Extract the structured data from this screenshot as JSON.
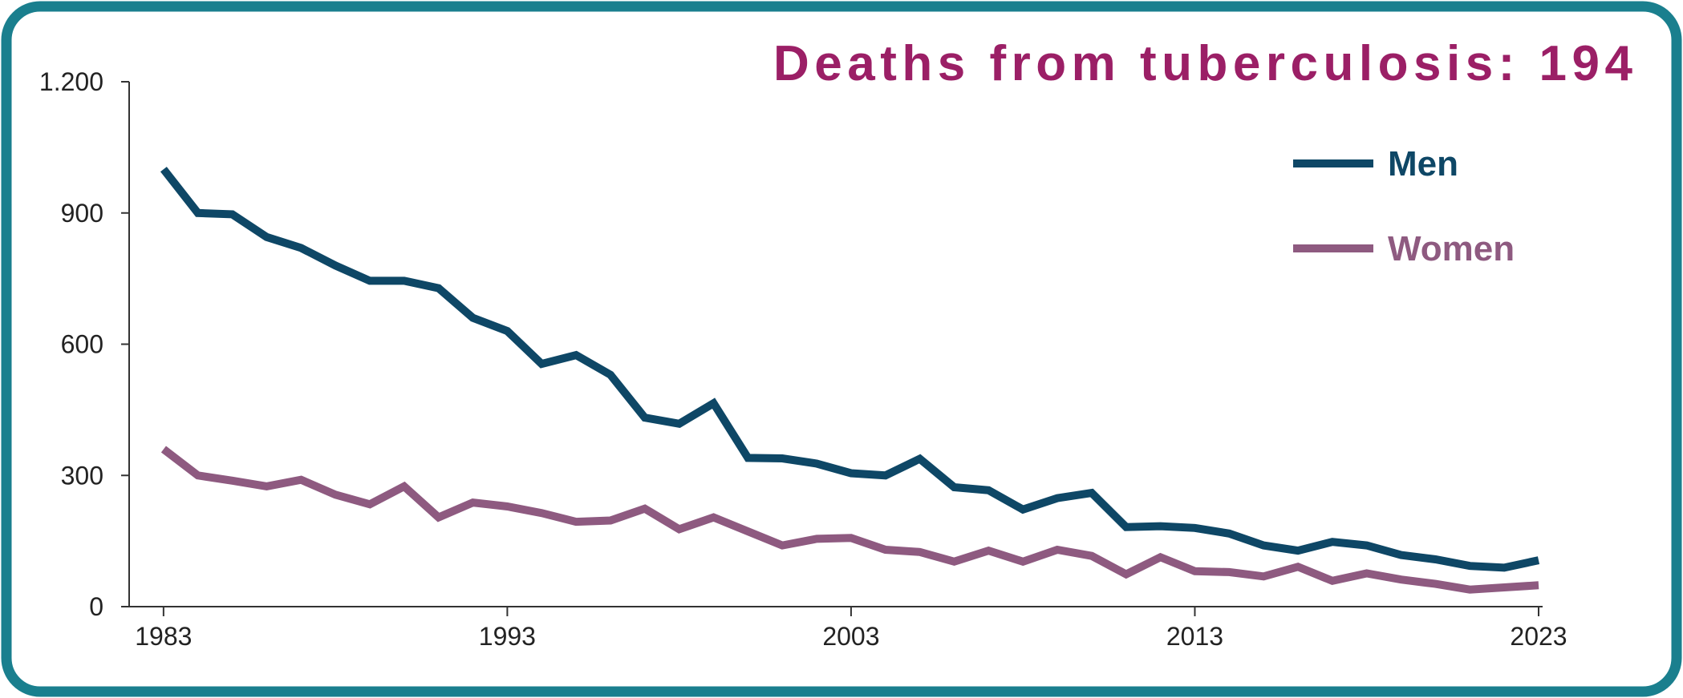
{
  "chart_data": {
    "type": "line",
    "title": "Deaths from tuberculosis: 194",
    "x": [
      1983,
      1984,
      1985,
      1986,
      1987,
      1988,
      1989,
      1990,
      1991,
      1992,
      1993,
      1994,
      1995,
      1996,
      1997,
      1998,
      1999,
      2000,
      2001,
      2002,
      2003,
      2004,
      2005,
      2006,
      2007,
      2008,
      2009,
      2010,
      2011,
      2012,
      2013,
      2014,
      2015,
      2016,
      2017,
      2018,
      2019,
      2020,
      2021,
      2022,
      2023
    ],
    "series": [
      {
        "name": "Men",
        "color": "#0e4766",
        "values": [
          1000,
          900,
          897,
          845,
          820,
          780,
          745,
          745,
          728,
          660,
          630,
          555,
          575,
          530,
          432,
          418,
          465,
          340,
          339,
          327,
          305,
          300,
          338,
          273,
          266,
          222,
          248,
          260,
          182,
          184,
          180,
          167,
          140,
          128,
          148,
          140,
          118,
          108,
          93,
          89,
          106
        ]
      },
      {
        "name": "Women",
        "color": "#8e5a80",
        "values": [
          360,
          300,
          288,
          275,
          290,
          256,
          234,
          275,
          204,
          238,
          229,
          214,
          194,
          197,
          224,
          177,
          204,
          172,
          140,
          155,
          157,
          130,
          125,
          103,
          128,
          103,
          130,
          116,
          74,
          113,
          81,
          79,
          69,
          91,
          59,
          76,
          62,
          52,
          39,
          44,
          49
        ]
      }
    ],
    "xlim": [
      1982,
      2023
    ],
    "xticks": [
      1983,
      1993,
      2003,
      2013,
      2023
    ],
    "ylim": [
      0,
      1200
    ],
    "yticks": [
      0,
      300,
      600,
      900,
      {
        "value": 1200,
        "label": "1.200"
      }
    ],
    "legend": "upper right",
    "grid": false
  }
}
